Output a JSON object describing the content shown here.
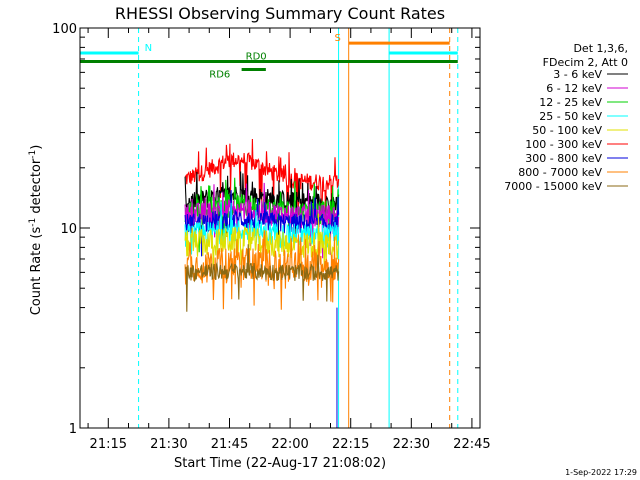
{
  "chart_data": {
    "type": "line",
    "title": "RHESSI Observing Summary Count Rates",
    "xlabel": "Start Time (22-Aug-17 21:08:02)",
    "ylabel_main": "Count Rate (s",
    "ylabel_sup1": "-1",
    "ylabel_mid": " detector",
    "ylabel_sup2": "-1",
    "ylabel_end": ")",
    "y_scale": "log",
    "ylim": [
      1,
      100
    ],
    "xlim_minutes": [
      0,
      99
    ],
    "y_ticks": [
      {
        "value": 1,
        "label": "1"
      },
      {
        "value": 10,
        "label": "10"
      },
      {
        "value": 100,
        "label": "100"
      }
    ],
    "x_ticks": [
      {
        "value": 7,
        "label": "21:15"
      },
      {
        "value": 22,
        "label": "21:30"
      },
      {
        "value": 37,
        "label": "21:45"
      },
      {
        "value": 52,
        "label": "22:00"
      },
      {
        "value": 67,
        "label": "22:15"
      },
      {
        "value": 82,
        "label": "22:30"
      },
      {
        "value": 97,
        "label": "22:45"
      }
    ],
    "legend": {
      "placement": "right",
      "header": [
        "Det 1,3,6,",
        "FDecim 2, Att 0"
      ],
      "entries": [
        {
          "label": "3 - 6 keV",
          "color": "#000000"
        },
        {
          "label": "6 - 12 keV",
          "color": "#d100d1"
        },
        {
          "label": "12 - 25 keV",
          "color": "#00d000"
        },
        {
          "label": "25 - 50 keV",
          "color": "#00ffff"
        },
        {
          "label": "50 - 100 keV",
          "color": "#e0e000"
        },
        {
          "label": "100 - 300 keV",
          "color": "#ff0000"
        },
        {
          "label": "300 - 800 keV",
          "color": "#0000dd"
        },
        {
          "label": "800 - 7000 keV",
          "color": "#ff8000"
        },
        {
          "label": "7000 - 15000 keV",
          "color": "#8b6914"
        }
      ]
    },
    "data_window_minutes": [
      26,
      64
    ],
    "series": [
      {
        "label": "100 - 300 keV",
        "color": "#ff0000",
        "base": 17,
        "spread": 0.05,
        "bump": 5,
        "spikes": 0.12
      },
      {
        "label": "3 - 6 keV",
        "color": "#000000",
        "base": 13.5,
        "spread": 0.06,
        "bump": 1.2,
        "spikes": 0.08
      },
      {
        "label": "12 - 25 keV",
        "color": "#00d000",
        "base": 12,
        "spread": 0.07,
        "bump": 1.0,
        "spikes": 0.08
      },
      {
        "label": "6 - 12 keV",
        "color": "#d100d1",
        "base": 11.5,
        "spread": 0.07,
        "bump": 0.8,
        "spikes": 0.06
      },
      {
        "label": "300 - 800 keV",
        "color": "#0000dd",
        "base": 10.5,
        "spread": 0.06,
        "bump": 0.6,
        "spikes": 0.05
      },
      {
        "label": "25 - 50 keV",
        "color": "#00ffff",
        "base": 9.2,
        "spread": 0.07,
        "bump": 0.5,
        "spikes": 0.05
      },
      {
        "label": "50 - 100 keV",
        "color": "#e0e000",
        "base": 8.3,
        "spread": 0.08,
        "bump": 0.4,
        "spikes": 0.05
      },
      {
        "label": "800 - 7000 keV",
        "color": "#ff8000",
        "base": 6.5,
        "spread": 0.09,
        "bump": 0.3,
        "spikes": 0.15
      },
      {
        "label": "7000 - 15000 keV",
        "color": "#8b6914",
        "base": 6.0,
        "spread": 0.05,
        "bump": 0.1,
        "spikes": 0.02
      }
    ],
    "vertical_markers": [
      {
        "minute": 0,
        "color": "#00ffff",
        "style": "solid"
      },
      {
        "minute": 14.5,
        "color": "#00ffff",
        "style": "dashed"
      },
      {
        "minute": 64,
        "color": "#00ffff",
        "style": "solid"
      },
      {
        "minute": 66.5,
        "color": "#ff8000",
        "style": "solid"
      },
      {
        "minute": 76.5,
        "color": "#00ffff",
        "style": "solid"
      },
      {
        "minute": 91.5,
        "color": "#ff8000",
        "style": "dashed"
      },
      {
        "minute": 93.5,
        "color": "#00ffff",
        "style": "dashed"
      }
    ],
    "flag_bars": [
      {
        "label": "N",
        "color": "#00ffff",
        "y": 75,
        "segments": [
          [
            0,
            14.5
          ],
          [
            76.5,
            93.5
          ]
        ],
        "label_at": 16
      },
      {
        "label": "S",
        "color": "#ff8000",
        "y": 84,
        "segments": [
          [
            66.5,
            91.5
          ]
        ],
        "label_at": 63
      },
      {
        "label": "RD0",
        "color": "#008000",
        "y": 68,
        "segments": [
          [
            0,
            93.5
          ]
        ],
        "label_at": 41
      },
      {
        "label": "RD6",
        "color": "#008000",
        "y": 62,
        "segments": [
          [
            40,
            46
          ]
        ],
        "label_at": 32
      }
    ]
  },
  "footer_timestamp": "1-Sep-2022 17:29"
}
